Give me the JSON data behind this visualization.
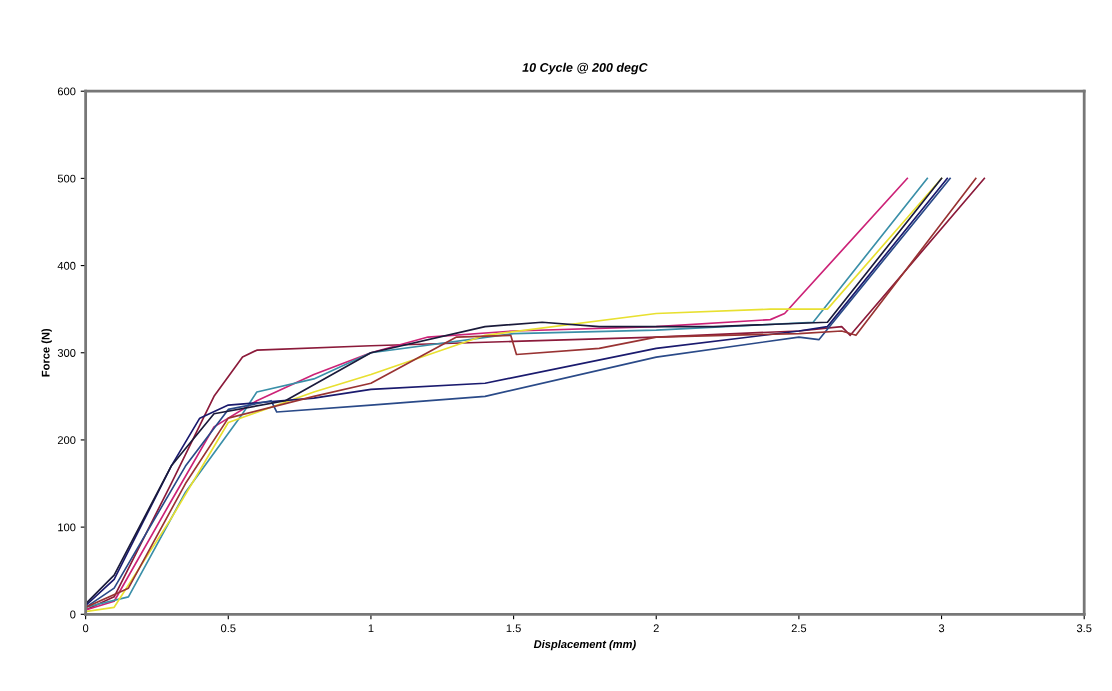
{
  "chart_data": {
    "type": "line",
    "title": "10 Cycle @ 200 degC",
    "xlabel": "Displacement (mm)",
    "ylabel": "Force (N)",
    "xlim": [
      0,
      3.5
    ],
    "xticks": [
      0,
      0.5,
      1,
      1.5,
      2,
      2.5,
      3,
      3.5
    ],
    "ylim": [
      0,
      600
    ],
    "yticks": [
      0,
      100,
      200,
      300,
      400,
      500,
      600
    ],
    "grid": false,
    "marker": "none",
    "line_style": "solid",
    "series": [
      {
        "color": "#8b1a3a",
        "x": [
          0,
          0.1,
          0.3,
          0.45,
          0.55,
          0.6,
          1,
          1.5,
          2,
          2.5,
          2.65,
          2.68,
          3.15
        ],
        "values": [
          5,
          20,
          150,
          250,
          295,
          303,
          308,
          313,
          318,
          325,
          330,
          320,
          500
        ]
      },
      {
        "color": "#cc2277",
        "x": [
          0,
          0.1,
          0.3,
          0.45,
          0.6,
          0.8,
          1.0,
          1.2,
          1.5,
          2,
          2.4,
          2.45,
          2.88
        ],
        "values": [
          5,
          15,
          130,
          215,
          245,
          275,
          300,
          318,
          325,
          330,
          338,
          345,
          500
        ]
      },
      {
        "color": "#3a8fa8",
        "x": [
          0,
          0.15,
          0.35,
          0.55,
          0.6,
          0.8,
          1.0,
          1.5,
          2,
          2.55,
          2.95
        ],
        "values": [
          8,
          20,
          140,
          230,
          255,
          270,
          300,
          322,
          326,
          335,
          500
        ]
      },
      {
        "color": "#e8e030",
        "x": [
          0,
          0.1,
          0.3,
          0.5,
          0.8,
          1.0,
          1.4,
          2,
          2.4,
          2.6,
          3.0
        ],
        "values": [
          3,
          8,
          110,
          220,
          255,
          275,
          320,
          345,
          350,
          350,
          500
        ]
      },
      {
        "color": "#1a1a6e",
        "x": [
          0,
          0.1,
          0.3,
          0.4,
          0.5,
          0.8,
          1.0,
          1.4,
          2,
          2.5,
          2.6,
          3.02
        ],
        "values": [
          10,
          40,
          170,
          225,
          240,
          248,
          258,
          265,
          305,
          325,
          330,
          500
        ]
      },
      {
        "color": "#2a4a88",
        "x": [
          0,
          0.1,
          0.35,
          0.5,
          0.65,
          0.67,
          1.0,
          1.4,
          2,
          2.5,
          2.57,
          3.03
        ],
        "values": [
          8,
          30,
          170,
          235,
          245,
          232,
          240,
          250,
          295,
          318,
          315,
          500
        ]
      },
      {
        "color": "#1a1a3a",
        "x": [
          0,
          0.1,
          0.3,
          0.45,
          0.7,
          1.0,
          1.4,
          1.6,
          1.8,
          2.2,
          2.6,
          3.0
        ],
        "values": [
          12,
          45,
          170,
          230,
          245,
          300,
          330,
          335,
          330,
          330,
          335,
          500
        ]
      },
      {
        "color": "#993333",
        "x": [
          0,
          0.15,
          0.35,
          0.5,
          0.8,
          1.0,
          1.3,
          1.49,
          1.51,
          1.8,
          2,
          2.5,
          2.65,
          2.7,
          3.12
        ],
        "values": [
          8,
          30,
          150,
          225,
          250,
          265,
          318,
          320,
          298,
          305,
          318,
          322,
          325,
          320,
          500
        ]
      }
    ]
  }
}
